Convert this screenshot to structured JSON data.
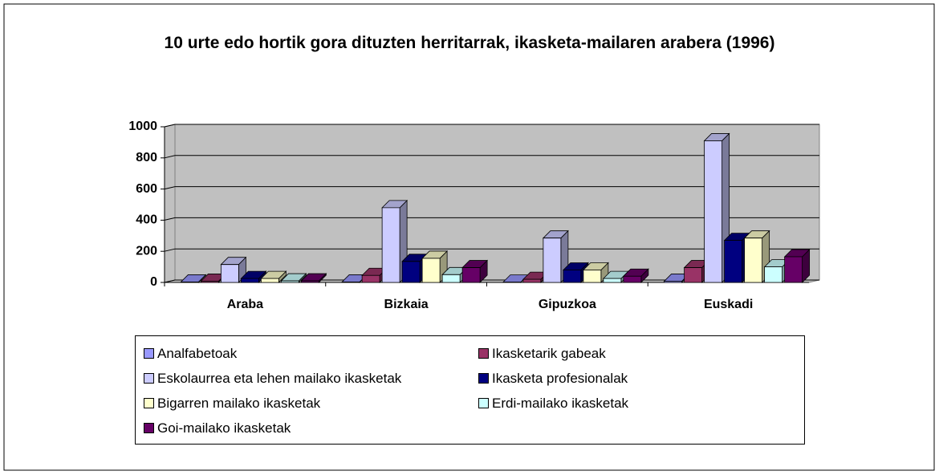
{
  "chart_data": {
    "type": "bar3d",
    "title": "10 urte edo hortik gora dituzten herritarrak, ikasketa-mailaren arabera (1996)",
    "categories": [
      "Araba",
      "Bizkaia",
      "Gipuzkoa",
      "Euskadi"
    ],
    "series": [
      {
        "name": "Analfabetoak",
        "color": "#9999ff",
        "values": [
          3,
          3,
          2,
          8
        ]
      },
      {
        "name": "Ikasketarik gabeak",
        "color": "#993366",
        "values": [
          8,
          45,
          20,
          95
        ]
      },
      {
        "name": "Eskolaurrea eta lehen mailako ikasketak",
        "color": "#ccccff",
        "values": [
          115,
          480,
          285,
          910
        ]
      },
      {
        "name": "Ikasketa profesionalak",
        "color": "#000080",
        "values": [
          25,
          135,
          80,
          270
        ]
      },
      {
        "name": "Bigarren mailako ikasketak",
        "color": "#ffffcc",
        "values": [
          25,
          155,
          80,
          285
        ]
      },
      {
        "name": "Erdi-mailako ikasketak",
        "color": "#ccffff",
        "values": [
          10,
          50,
          25,
          100
        ]
      },
      {
        "name": "Goi-mailako ikasketak",
        "color": "#660066",
        "values": [
          10,
          95,
          40,
          165
        ]
      }
    ],
    "ylim": [
      0,
      1000
    ],
    "yticks": [
      0,
      200,
      400,
      600,
      800,
      1000
    ],
    "grid": true,
    "legend": "bottom"
  }
}
